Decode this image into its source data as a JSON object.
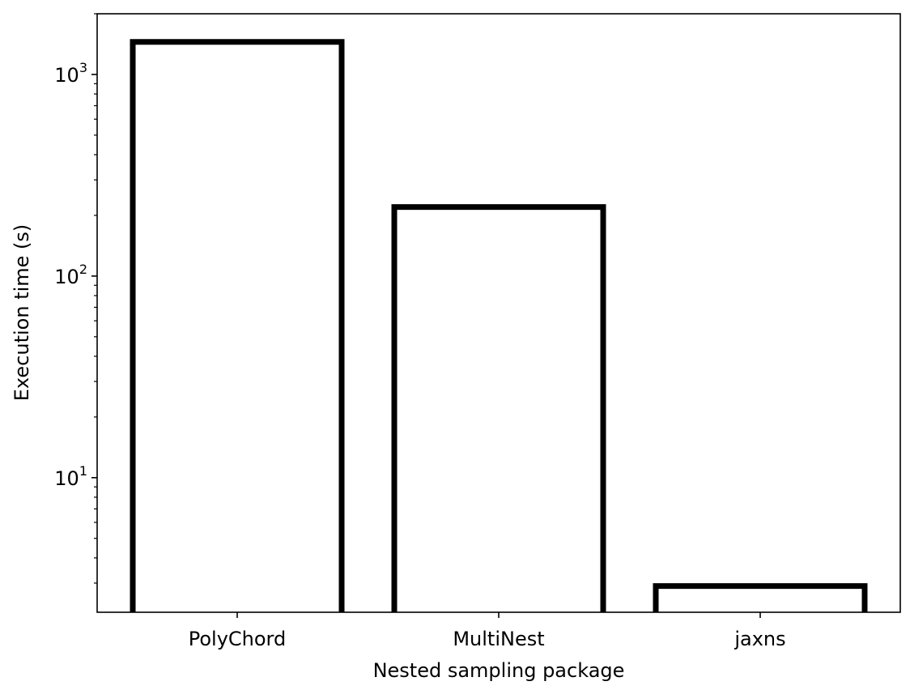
{
  "chart_data": {
    "type": "bar",
    "title": "",
    "xlabel": "Nested sampling package",
    "ylabel": "Execution time (s)",
    "yscale": "log",
    "ylim": [
      2.15,
      2000
    ],
    "categories": [
      "PolyChord",
      "MultiNest",
      "jaxns"
    ],
    "values": [
      1450,
      220,
      2.9
    ],
    "bar_style": {
      "fill": "#ffffff",
      "edge": "#000000"
    },
    "y_ticks": [
      {
        "value": 10,
        "base": "10",
        "exp": "1"
      },
      {
        "value": 100,
        "base": "10",
        "exp": "2"
      },
      {
        "value": 1000,
        "base": "10",
        "exp": "3"
      }
    ],
    "grid": false,
    "legend": "none"
  }
}
